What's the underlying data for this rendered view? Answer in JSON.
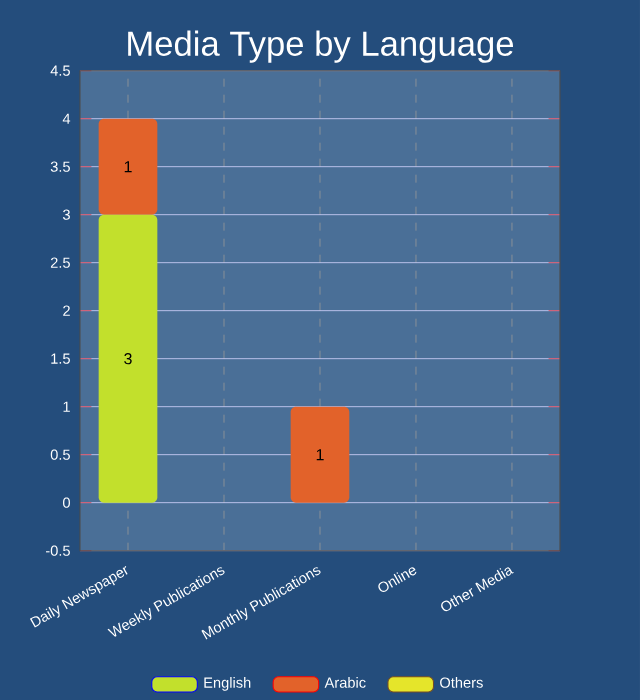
{
  "chart_data": {
    "type": "bar",
    "stacked": true,
    "title": "Media Type by Language",
    "categories": [
      "Daily Newspaper",
      "Weekly Publications",
      "Monthly Publications",
      "Online",
      "Other Media"
    ],
    "series": [
      {
        "name": "English",
        "color": "#c2e02c",
        "values": [
          3,
          0,
          0,
          0,
          0
        ],
        "value_labels": [
          "3",
          null,
          null,
          null,
          null
        ]
      },
      {
        "name": "Arabic",
        "color": "#e2622a",
        "values": [
          1,
          0,
          1,
          0,
          0
        ],
        "value_labels": [
          "1",
          null,
          "1",
          null,
          null
        ]
      },
      {
        "name": "Others",
        "color": "#e5e52a",
        "values": [
          0,
          0,
          0,
          0,
          0
        ],
        "value_labels": [
          null,
          null,
          null,
          null,
          null
        ]
      }
    ],
    "ylim": [
      -0.5,
      4.5
    ],
    "yticks": [
      -0.5,
      0,
      0.5,
      1,
      1.5,
      2,
      2.5,
      3,
      3.5,
      4,
      4.5
    ],
    "grid": true,
    "legend": "bottom"
  }
}
